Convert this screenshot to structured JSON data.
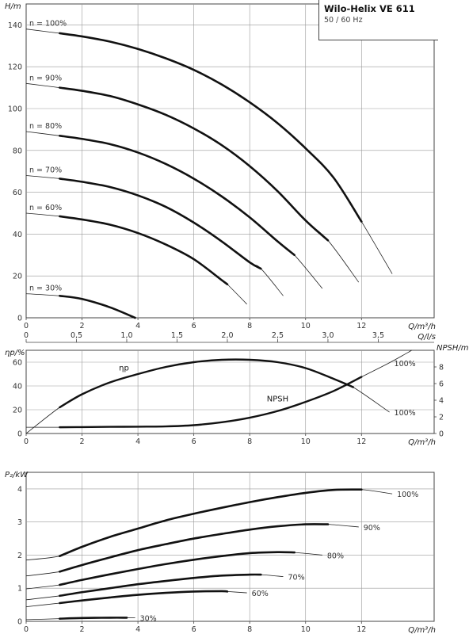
{
  "title": "Wilo-Helix VE 611",
  "subtitle": "50 / 60 Hz",
  "chart_data": [
    {
      "type": "line",
      "name": "head",
      "ylabel": "H/m",
      "xlabel": "Q/m³/h",
      "xlim": [
        0,
        14.6
      ],
      "ylim": [
        0,
        150
      ],
      "xticks": [
        0,
        2,
        4,
        6,
        8,
        10,
        12
      ],
      "yticks": [
        0,
        20,
        40,
        60,
        80,
        100,
        120,
        140
      ],
      "secondary_x": {
        "label": "Q/l/s",
        "ticks": [
          "0",
          "0,5",
          "1,0",
          "1,5",
          "2,0",
          "2,5",
          "3,0",
          "3,5"
        ],
        "values": [
          0,
          0.5,
          1.0,
          1.5,
          2.0,
          2.5,
          3.0,
          3.5
        ]
      },
      "grid": true,
      "series": [
        {
          "name": "n = 100%",
          "label": "n = 100%",
          "q_max": 13.1,
          "bold_from": 1.2,
          "bold_to": 12.0,
          "x": [
            0,
            1.2,
            2,
            3,
            4,
            5,
            6,
            7,
            8,
            9,
            10,
            11,
            12,
            13.1
          ],
          "y": [
            138,
            136,
            134.5,
            132,
            128.5,
            124,
            118.5,
            111.5,
            103,
            93,
            81,
            67,
            46,
            21
          ]
        },
        {
          "name": "n = 90%",
          "label": "n = 90%",
          "q_max": 11.9,
          "bold_from": 1.2,
          "bold_to": 10.8,
          "x": [
            0,
            1.2,
            2,
            3,
            4,
            5,
            6,
            7,
            8,
            9,
            10,
            10.8,
            11.9
          ],
          "y": [
            112,
            110,
            108.5,
            106,
            102,
            97,
            90.5,
            82.5,
            72.5,
            60.5,
            46.5,
            37,
            17
          ]
        },
        {
          "name": "n = 80%",
          "label": "n = 80%",
          "q_max": 10.6,
          "bold_from": 1.2,
          "bold_to": 9.6,
          "x": [
            0,
            1.2,
            2,
            3,
            4,
            5,
            6,
            7,
            8,
            9,
            9.6,
            10.6
          ],
          "y": [
            89,
            87,
            85.5,
            83,
            79,
            73.5,
            66.5,
            58,
            48,
            36.5,
            30,
            14
          ]
        },
        {
          "name": "n = 70%",
          "label": "n = 70%",
          "q_max": 9.2,
          "bold_from": 1.2,
          "bold_to": 8.4,
          "x": [
            0,
            1.2,
            2,
            3,
            4,
            5,
            6,
            7,
            8,
            8.4,
            9.2
          ],
          "y": [
            68,
            66.5,
            65,
            62.5,
            58.5,
            53,
            45.5,
            36.5,
            26.5,
            23.5,
            10.5
          ]
        },
        {
          "name": "n = 60%",
          "label": "n = 60%",
          "q_max": 7.9,
          "bold_from": 1.2,
          "bold_to": 7.2,
          "x": [
            0,
            1.2,
            2,
            3,
            4,
            5,
            6,
            7,
            7.2,
            7.9
          ],
          "y": [
            50,
            48.5,
            47,
            44.5,
            40.5,
            35,
            28,
            18,
            16,
            6.5
          ]
        },
        {
          "name": "n = 30%",
          "label": "n = 30%",
          "q_max": 3.9,
          "bold_from": 1.2,
          "bold_to": 3.9,
          "x": [
            0,
            1.2,
            2,
            3,
            3.9
          ],
          "y": [
            11.5,
            10.5,
            9,
            5,
            0
          ]
        }
      ]
    },
    {
      "type": "line",
      "name": "efficiency-npsh",
      "ylabel": "ηp/%",
      "ylabel_right": "NPSH/m",
      "xlabel": "Q/m³/h",
      "xlim": [
        0,
        14.6
      ],
      "ylim": [
        0,
        70
      ],
      "ylim_right": [
        0,
        10
      ],
      "xticks": [
        0,
        2,
        4,
        6,
        8,
        10,
        12
      ],
      "yticks": [
        0,
        20,
        40,
        60
      ],
      "yticks_right": [
        0,
        2,
        4,
        6,
        8
      ],
      "grid": true,
      "series": [
        {
          "name": "ηp",
          "label": "ηp",
          "end_label": "100%",
          "axis": "left",
          "bold_from": 1.2,
          "bold_to": 11.7,
          "x": [
            0,
            1.2,
            2,
            3,
            4,
            5,
            6,
            7,
            8,
            9,
            10,
            11,
            11.7,
            13
          ],
          "y": [
            0,
            22,
            33,
            43,
            50,
            56,
            60,
            62,
            62,
            60,
            55,
            46,
            39,
            18
          ]
        },
        {
          "name": "NPSH",
          "label": "NPSH",
          "end_label": "100%",
          "axis": "right",
          "bold_from": 1.2,
          "bold_to": 12.0,
          "x": [
            0,
            1.2,
            2,
            3,
            4,
            5,
            6,
            7,
            8,
            9,
            10,
            11,
            12,
            13,
            13.8
          ],
          "y": [
            0.75,
            0.75,
            0.77,
            0.8,
            0.82,
            0.85,
            1.0,
            1.35,
            1.9,
            2.7,
            3.8,
            5.1,
            6.8,
            8.5,
            10
          ]
        }
      ]
    },
    {
      "type": "line",
      "name": "power",
      "ylabel": "P₂/kW",
      "xlabel": "Q/m³/h",
      "xlim": [
        0,
        14.6
      ],
      "ylim": [
        0,
        4.5
      ],
      "xticks": [
        0,
        2,
        4,
        6,
        8,
        10,
        12
      ],
      "yticks": [
        0,
        1,
        2,
        3,
        4
      ],
      "grid": true,
      "series": [
        {
          "name": "100%",
          "label": "100%",
          "q_max": 13.1,
          "bold_from": 1.2,
          "bold_to": 12.0,
          "x": [
            0,
            1.2,
            2,
            3,
            4,
            5,
            6,
            7,
            8,
            9,
            10,
            11,
            12,
            13.1
          ],
          "y": [
            1.85,
            1.97,
            2.25,
            2.55,
            2.8,
            3.05,
            3.25,
            3.43,
            3.6,
            3.75,
            3.88,
            3.97,
            3.98,
            3.85
          ]
        },
        {
          "name": "90%",
          "label": "90%",
          "q_max": 11.9,
          "bold_from": 1.2,
          "bold_to": 10.8,
          "x": [
            0,
            1.2,
            2,
            3,
            4,
            5,
            6,
            7,
            8,
            9,
            10,
            10.8,
            11.9
          ],
          "y": [
            1.37,
            1.5,
            1.7,
            1.93,
            2.15,
            2.33,
            2.5,
            2.64,
            2.77,
            2.87,
            2.93,
            2.93,
            2.85
          ]
        },
        {
          "name": "80%",
          "label": "80%",
          "q_max": 10.6,
          "bold_from": 1.2,
          "bold_to": 9.6,
          "x": [
            0,
            1.2,
            2,
            3,
            4,
            5,
            6,
            7,
            8,
            9,
            9.6,
            10.6
          ],
          "y": [
            0.98,
            1.1,
            1.25,
            1.42,
            1.58,
            1.73,
            1.86,
            1.97,
            2.06,
            2.09,
            2.08,
            2.0
          ]
        },
        {
          "name": "70%",
          "label": "70%",
          "q_max": 9.2,
          "bold_from": 1.2,
          "bold_to": 8.4,
          "x": [
            0,
            1.2,
            2,
            3,
            4,
            5,
            6,
            7,
            8,
            8.4,
            9.2
          ],
          "y": [
            0.65,
            0.77,
            0.88,
            1.0,
            1.12,
            1.22,
            1.31,
            1.38,
            1.41,
            1.41,
            1.35
          ]
        },
        {
          "name": "60%",
          "label": "60%",
          "q_max": 7.9,
          "bold_from": 1.2,
          "bold_to": 7.2,
          "x": [
            0,
            1.2,
            2,
            3,
            4,
            5,
            6,
            7,
            7.2,
            7.9
          ],
          "y": [
            0.44,
            0.55,
            0.63,
            0.72,
            0.8,
            0.86,
            0.9,
            0.91,
            0.9,
            0.86
          ]
        },
        {
          "name": "30%",
          "label": "30%",
          "q_max": 3.9,
          "bold_from": 1.2,
          "bold_to": 3.6,
          "x": [
            0,
            1.2,
            2,
            3,
            3.6,
            3.9
          ],
          "y": [
            0.05,
            0.08,
            0.1,
            0.11,
            0.11,
            0.11
          ]
        }
      ]
    }
  ]
}
